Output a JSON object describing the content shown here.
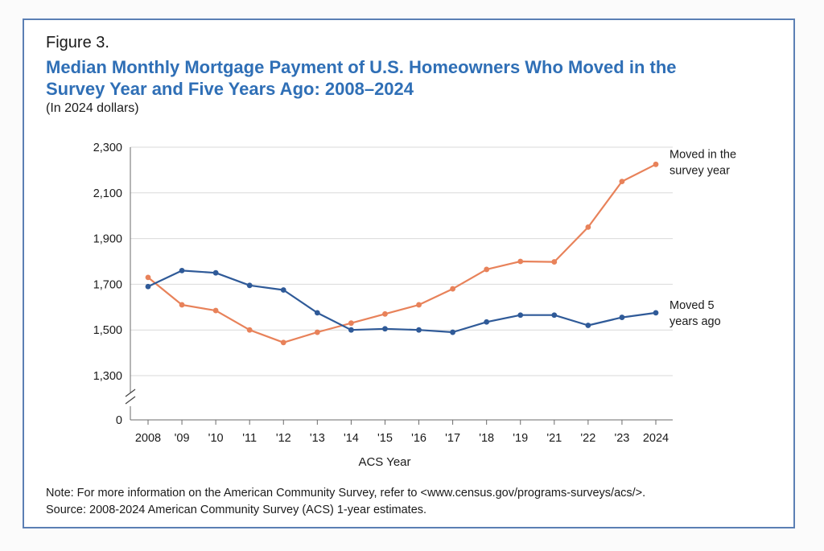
{
  "figure_label": "Figure 3.",
  "title_line1": "Median Monthly Mortgage Payment of U.S. Homeowners Who Moved in the",
  "title_line2": "Survey Year and Five Years Ago: 2008–2024",
  "subtitle": "(In 2024 dollars)",
  "note": "Note: For more information on the American Community Survey, refer to <www.census.gov/programs-surveys/acs/>.",
  "source": "Source: 2008-2024 American Community Survey (ACS) 1-year estimates.",
  "colors": {
    "title": "#2f6fb6",
    "series_survey_year": "#e8825a",
    "series_five_years": "#2f5a98",
    "frame": "#5b7fb4",
    "grid": "#d9d9d9"
  },
  "chart_data": {
    "type": "line",
    "title": "Median Monthly Mortgage Payment of U.S. Homeowners Who Moved in the Survey Year and Five Years Ago: 2008–2024",
    "xlabel": "ACS Year",
    "ylabel": "",
    "categories": [
      "2008",
      "'09",
      "'10",
      "'11",
      "'12",
      "'13",
      "'14",
      "'15",
      "'16",
      "'17",
      "'18",
      "'19",
      "'21",
      "'22",
      "'23",
      "2024"
    ],
    "y_ticks": [
      1300,
      1500,
      1700,
      1900,
      2100,
      2300
    ],
    "y_tick_labels": [
      "1,300",
      "1,500",
      "1,700",
      "1,900",
      "2,100",
      "2,300"
    ],
    "y_zero_label": "0",
    "ylim": [
      1300,
      2300
    ],
    "axis_break": true,
    "series": [
      {
        "name": "Moved in the survey year",
        "label_lines": [
          "Moved in the",
          "survey year"
        ],
        "color_key": "series_survey_year",
        "values": [
          1730,
          1610,
          1585,
          1500,
          1445,
          1490,
          1530,
          1570,
          1610,
          1680,
          1765,
          1800,
          1798,
          1950,
          2150,
          2225
        ]
      },
      {
        "name": "Moved 5 years ago",
        "label_lines": [
          "Moved 5",
          "years ago"
        ],
        "color_key": "series_five_years",
        "values": [
          1690,
          1760,
          1750,
          1695,
          1675,
          1575,
          1500,
          1505,
          1500,
          1490,
          1535,
          1565,
          1565,
          1520,
          1555,
          1575
        ]
      }
    ]
  }
}
